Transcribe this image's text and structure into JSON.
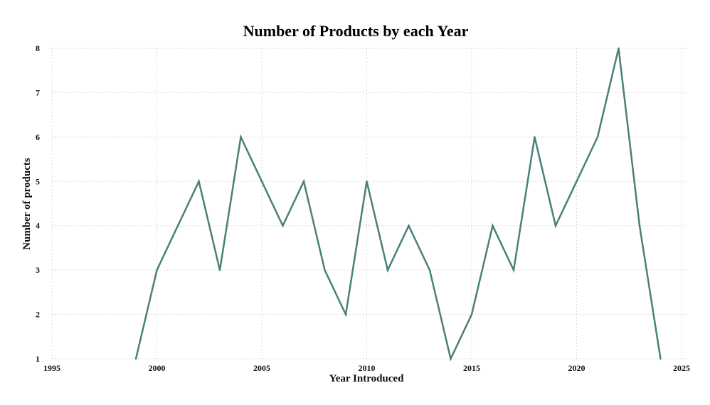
{
  "chart_data": {
    "type": "line",
    "title": "Number of Products by each Year",
    "xlabel": "Year Introduced",
    "ylabel": "Number of products",
    "xlim": [
      1995,
      2025
    ],
    "ylim": [
      1,
      8
    ],
    "xticks": [
      1995,
      2000,
      2005,
      2010,
      2015,
      2020,
      2025
    ],
    "yticks": [
      1,
      2,
      3,
      4,
      5,
      6,
      7,
      8
    ],
    "grid": true,
    "legend": "none",
    "color": "#4a8078",
    "series": [
      {
        "x": [
          1999,
          2000,
          2001,
          2002,
          2003,
          2004,
          2005,
          2006,
          2007,
          2008,
          2009,
          2010,
          2011,
          2012,
          2013,
          2014,
          2015,
          2016,
          2017,
          2018,
          2019,
          2020,
          2021,
          2022,
          2023,
          2024
        ],
        "values": [
          1,
          3,
          4,
          5,
          3,
          6,
          5,
          4,
          5,
          3,
          2,
          5,
          3,
          4,
          3,
          1,
          2,
          4,
          3,
          6,
          4,
          5,
          6,
          8,
          4,
          1
        ]
      }
    ]
  }
}
